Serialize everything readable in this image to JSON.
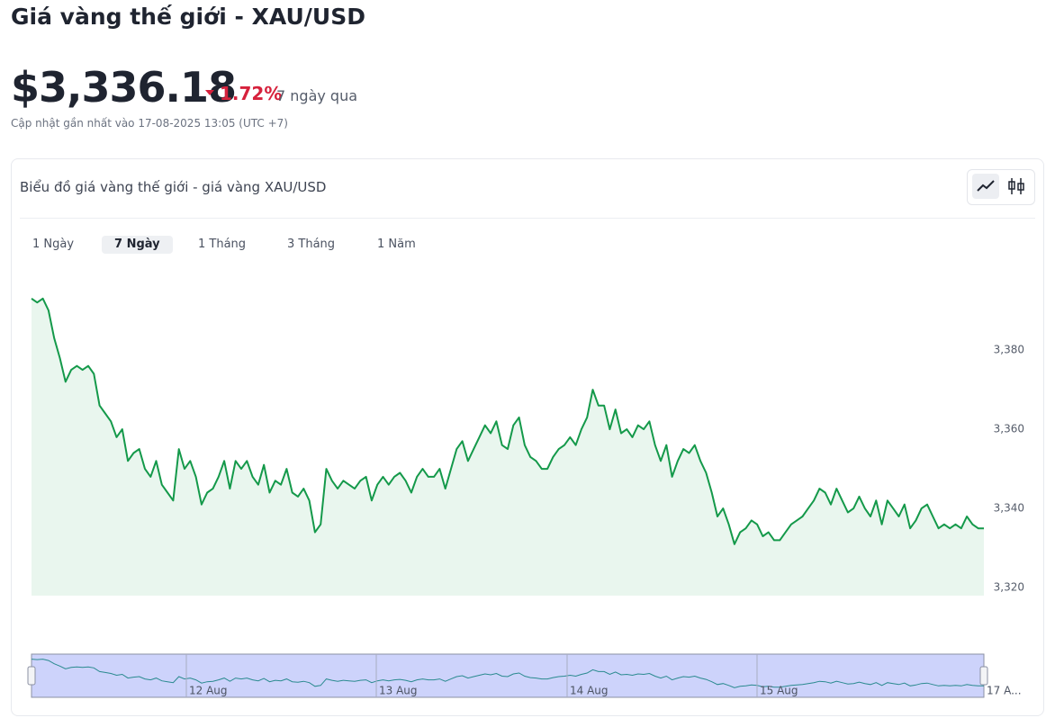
{
  "header": {
    "title": "Giá vàng thế giới - XAU/USD",
    "price": "$3,336.18",
    "change": "1.72%",
    "period": "7 ngày qua",
    "updated": "Cập nhật gần nhất vào 17-08-2025 13:05 (UTC +7)"
  },
  "tabs": [
    "1 Ngày",
    "7 Ngày",
    "1 Tháng",
    "3 Tháng",
    "1 Năm"
  ],
  "active_tab": 1,
  "chart_data": {
    "type": "line",
    "title": "Biểu đồ giá vàng thế giới - giá vàng XAU/USD",
    "series": [
      {
        "name": "XAU/USD",
        "color": "#14994a",
        "values": [
          3393,
          3392,
          3393,
          3390,
          3383,
          3378,
          3372,
          3375,
          3376,
          3375,
          3376,
          3374,
          3366,
          3364,
          3362,
          3358,
          3360,
          3352,
          3354,
          3355,
          3350,
          3348,
          3352,
          3346,
          3344,
          3342,
          3355,
          3350,
          3352,
          3348,
          3341,
          3344,
          3345,
          3348,
          3352,
          3345,
          3352,
          3350,
          3352,
          3348,
          3346,
          3351,
          3344,
          3347,
          3346,
          3350,
          3344,
          3343,
          3345,
          3342,
          3334,
          3336,
          3350,
          3347,
          3345,
          3347,
          3346,
          3345,
          3347,
          3348,
          3342,
          3346,
          3348,
          3346,
          3348,
          3349,
          3347,
          3344,
          3348,
          3350,
          3348,
          3348,
          3350,
          3345,
          3350,
          3355,
          3357,
          3352,
          3355,
          3358,
          3361,
          3359,
          3362,
          3356,
          3355,
          3361,
          3363,
          3356,
          3353,
          3352,
          3350,
          3350,
          3353,
          3355,
          3356,
          3358,
          3356,
          3360,
          3363,
          3370,
          3366,
          3366,
          3360,
          3365,
          3359,
          3360,
          3358,
          3361,
          3360,
          3362,
          3356,
          3352,
          3356,
          3348,
          3352,
          3355,
          3354,
          3356,
          3352,
          3349,
          3344,
          3338,
          3340,
          3336,
          3331,
          3334,
          3335,
          3337,
          3336,
          3333,
          3334,
          3332,
          3332,
          3334,
          3336,
          3337,
          3338,
          3340,
          3342,
          3345,
          3344,
          3341,
          3345,
          3342,
          3339,
          3340,
          3343,
          3340,
          3338,
          3342,
          3336,
          3342,
          3340,
          3338,
          3341,
          3335,
          3337,
          3340,
          3341,
          3338,
          3335,
          3336,
          3335,
          3336,
          3335,
          3338,
          3336,
          3335,
          3335
        ]
      }
    ],
    "ylim": [
      3318,
      3400
    ],
    "yticks": [
      {
        "value": 3320,
        "label": "3,320"
      },
      {
        "value": 3340,
        "label": "3,340"
      },
      {
        "value": 3360,
        "label": "3,360"
      },
      {
        "value": 3380,
        "label": "3,380"
      }
    ],
    "navigator_labels": [
      "12 Aug",
      "13 Aug",
      "14 Aug",
      "15 Aug",
      "17 A..."
    ]
  }
}
